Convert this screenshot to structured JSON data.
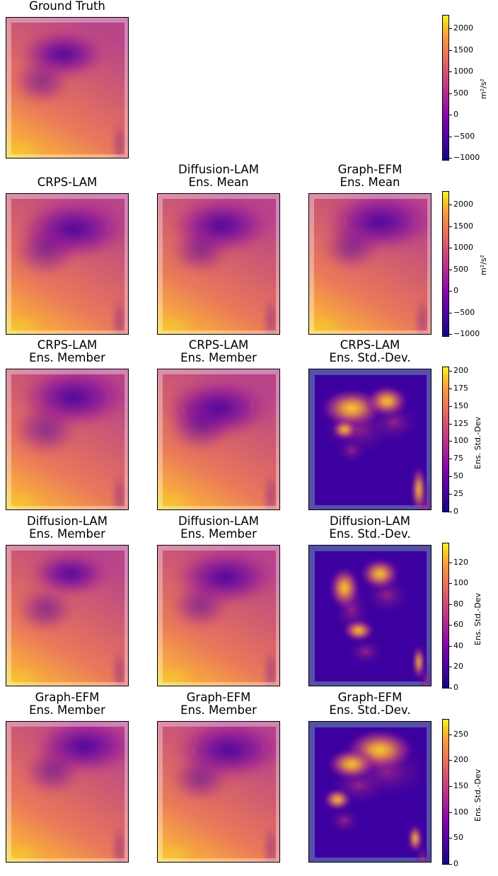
{
  "chart_data": {
    "type": "heatmap",
    "colormap": "plasma",
    "rows": [
      {
        "panels": [
          {
            "title": "Ground Truth",
            "kind": "field",
            "variant": "gt"
          }
        ],
        "colorbar": {
          "label": "m²/s²",
          "range": [
            -1050,
            2300
          ],
          "ticks": [
            "2000",
            "1500",
            "1000",
            "500",
            "0",
            "−500",
            "−1000"
          ],
          "tick_values": [
            2000,
            1500,
            1000,
            500,
            0,
            -500,
            -1000
          ]
        }
      },
      {
        "panels": [
          {
            "title": "CRPS-LAM",
            "kind": "field",
            "variant": "mean1"
          },
          {
            "title": "Diffusion-LAM\nEns. Mean",
            "kind": "field",
            "variant": "mean2"
          },
          {
            "title": "Graph-EFM\nEns. Mean",
            "kind": "field",
            "variant": "mean3"
          }
        ],
        "colorbar": {
          "label": "m²/s²",
          "range": [
            -1050,
            2300
          ],
          "ticks": [
            "2000",
            "1500",
            "1000",
            "500",
            "0",
            "−500",
            "−1000"
          ],
          "tick_values": [
            2000,
            1500,
            1000,
            500,
            0,
            -500,
            -1000
          ]
        }
      },
      {
        "panels": [
          {
            "title": "CRPS-LAM\nEns. Member",
            "kind": "field",
            "variant": "m1"
          },
          {
            "title": "CRPS-LAM\nEns. Member",
            "kind": "field",
            "variant": "m2"
          },
          {
            "title": "CRPS-LAM\nEns. Std.-Dev.",
            "kind": "std",
            "variant": "s1"
          }
        ],
        "colorbar": {
          "label": "Ens. Std.-Dev",
          "range": [
            0,
            205
          ],
          "ticks": [
            "200",
            "175",
            "150",
            "125",
            "100",
            "75",
            "50",
            "25",
            "0"
          ],
          "tick_values": [
            200,
            175,
            150,
            125,
            100,
            75,
            50,
            25,
            0
          ]
        }
      },
      {
        "panels": [
          {
            "title": "Diffusion-LAM\nEns. Member",
            "kind": "field",
            "variant": "m3"
          },
          {
            "title": "Diffusion-LAM\nEns. Member",
            "kind": "field",
            "variant": "m4"
          },
          {
            "title": "Diffusion-LAM\nEns. Std.-Dev.",
            "kind": "std",
            "variant": "s2"
          }
        ],
        "colorbar": {
          "label": "Ens. Std.-Dev",
          "range": [
            0,
            138
          ],
          "ticks": [
            "120",
            "100",
            "80",
            "60",
            "40",
            "20",
            "0"
          ],
          "tick_values": [
            120,
            100,
            80,
            60,
            40,
            20,
            0
          ]
        }
      },
      {
        "panels": [
          {
            "title": "Graph-EFM\nEns. Member",
            "kind": "field",
            "variant": "m5"
          },
          {
            "title": "Graph-EFM\nEns. Member",
            "kind": "field",
            "variant": "m6"
          },
          {
            "title": "Graph-EFM\nEns. Std.-Dev.",
            "kind": "std",
            "variant": "s3"
          }
        ],
        "colorbar": {
          "label": "Ens. Std.-Dev",
          "range": [
            0,
            278
          ],
          "ticks": [
            "250",
            "200",
            "150",
            "100",
            "50",
            "0"
          ],
          "tick_values": [
            250,
            200,
            150,
            100,
            50,
            0
          ]
        }
      }
    ]
  }
}
